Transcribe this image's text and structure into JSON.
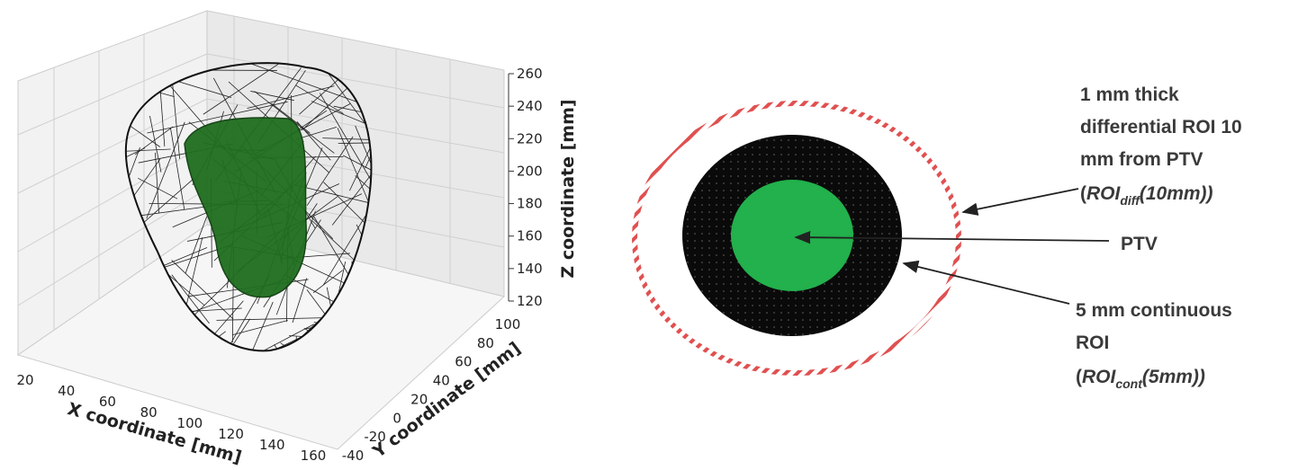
{
  "plot": {
    "x_label": "X coordinate [mm]",
    "y_label": "Y coordinate [mm]",
    "z_label": "Z coordinate [mm]",
    "x_ticks": [
      20,
      40,
      60,
      80,
      100,
      120,
      140,
      160
    ],
    "y_ticks": [
      -40,
      -20,
      0,
      20,
      40,
      60,
      80,
      100
    ],
    "z_ticks": [
      120,
      140,
      160,
      180,
      200,
      220,
      240,
      260
    ]
  },
  "diagram": {
    "annotations": [
      {
        "lines": [
          "1 mm thick",
          "differential ROI 10",
          "mm from PTV"
        ],
        "abbrev": {
          "open": "(",
          "main": "ROI",
          "sub": "diff",
          "rest": "(10mm))"
        }
      },
      {
        "lines": [
          "PTV"
        ]
      },
      {
        "lines": [
          "5 mm continuous",
          "ROI"
        ],
        "abbrev": {
          "open": "(",
          "main": "ROI",
          "sub": "cont",
          "rest": "(5mm))"
        }
      }
    ]
  }
}
